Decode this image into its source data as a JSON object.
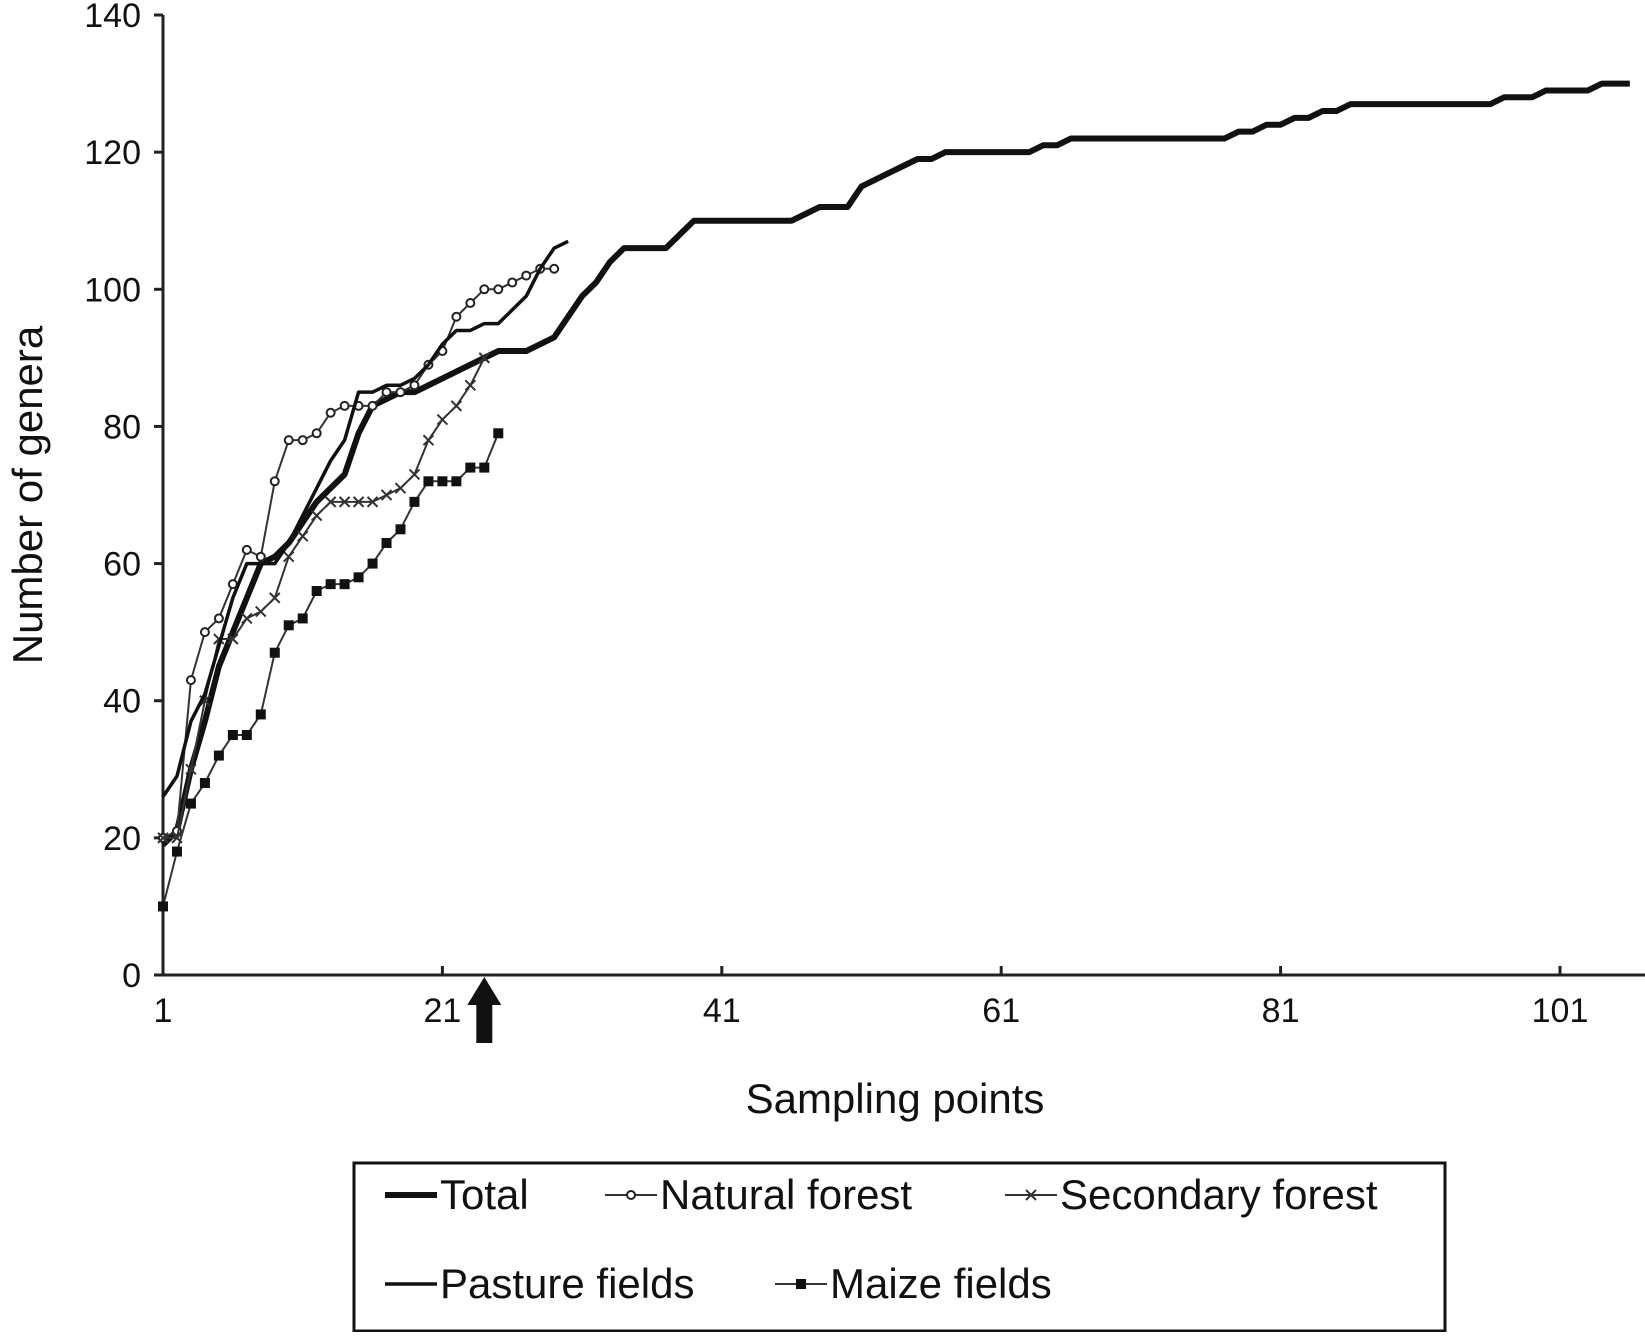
{
  "chart_data": {
    "type": "line",
    "title": "",
    "xlabel": "Sampling points",
    "ylabel": "Number of genera",
    "xlim": [
      1,
      107
    ],
    "ylim": [
      0,
      140
    ],
    "xticks": [
      "1",
      "21",
      "41",
      "61",
      "81",
      "101"
    ],
    "yticks": [
      "0",
      "20",
      "40",
      "60",
      "80",
      "100",
      "120",
      "140"
    ],
    "grid": false,
    "legend_position": "bottom",
    "annotation": {
      "type": "arrow-up",
      "x": 24
    },
    "series": [
      {
        "name": "Total",
        "marker": "none",
        "style": "thick",
        "y": [
          19,
          21,
          30,
          37,
          45,
          50,
          55,
          60,
          61,
          63,
          66,
          69,
          71,
          73,
          79,
          83,
          84,
          85,
          85,
          86,
          87,
          88,
          89,
          90,
          91,
          91,
          91,
          92,
          93,
          96,
          99,
          101,
          104,
          106,
          106,
          106,
          106,
          108,
          110,
          110,
          110,
          110,
          110,
          110,
          110,
          110,
          111,
          112,
          112,
          112,
          115,
          116,
          117,
          118,
          119,
          119,
          120,
          120,
          120,
          120,
          120,
          120,
          120,
          121,
          121,
          122,
          122,
          122,
          122,
          122,
          122,
          122,
          122,
          122,
          122,
          122,
          122,
          123,
          123,
          124,
          124,
          125,
          125,
          126,
          126,
          127,
          127,
          127,
          127,
          127,
          127,
          127,
          127,
          127,
          127,
          127,
          128,
          128,
          128,
          129,
          129,
          129,
          129,
          130,
          130,
          130
        ]
      },
      {
        "name": "Natural forest",
        "marker": "circle",
        "style": "thin",
        "y": [
          20,
          21,
          43,
          50,
          52,
          57,
          62,
          61,
          72,
          78,
          78,
          79,
          82,
          83,
          83,
          83,
          85,
          85,
          86,
          89,
          91,
          96,
          98,
          100,
          100,
          101,
          102,
          103,
          103
        ]
      },
      {
        "name": "Secondary forest",
        "marker": "x",
        "style": "thin",
        "y": [
          20,
          20,
          30,
          40,
          49,
          49,
          52,
          53,
          55,
          61,
          64,
          67,
          69,
          69,
          69,
          69,
          70,
          71,
          73,
          78,
          81,
          83,
          86,
          90
        ]
      },
      {
        "name": "Pasture fields",
        "marker": "none",
        "style": "medium",
        "y": [
          26,
          29,
          37,
          41,
          48,
          55,
          60,
          60,
          60,
          63,
          67,
          71,
          75,
          78,
          85,
          85,
          86,
          86,
          87,
          89,
          92,
          94,
          94,
          95,
          95,
          97,
          99,
          103,
          106,
          107
        ]
      },
      {
        "name": "Maize fields",
        "marker": "square",
        "style": "thin",
        "y": [
          10,
          18,
          25,
          28,
          32,
          35,
          35,
          38,
          47,
          51,
          52,
          56,
          57,
          57,
          58,
          60,
          63,
          65,
          69,
          72,
          72,
          72,
          74,
          74,
          79
        ]
      }
    ]
  }
}
